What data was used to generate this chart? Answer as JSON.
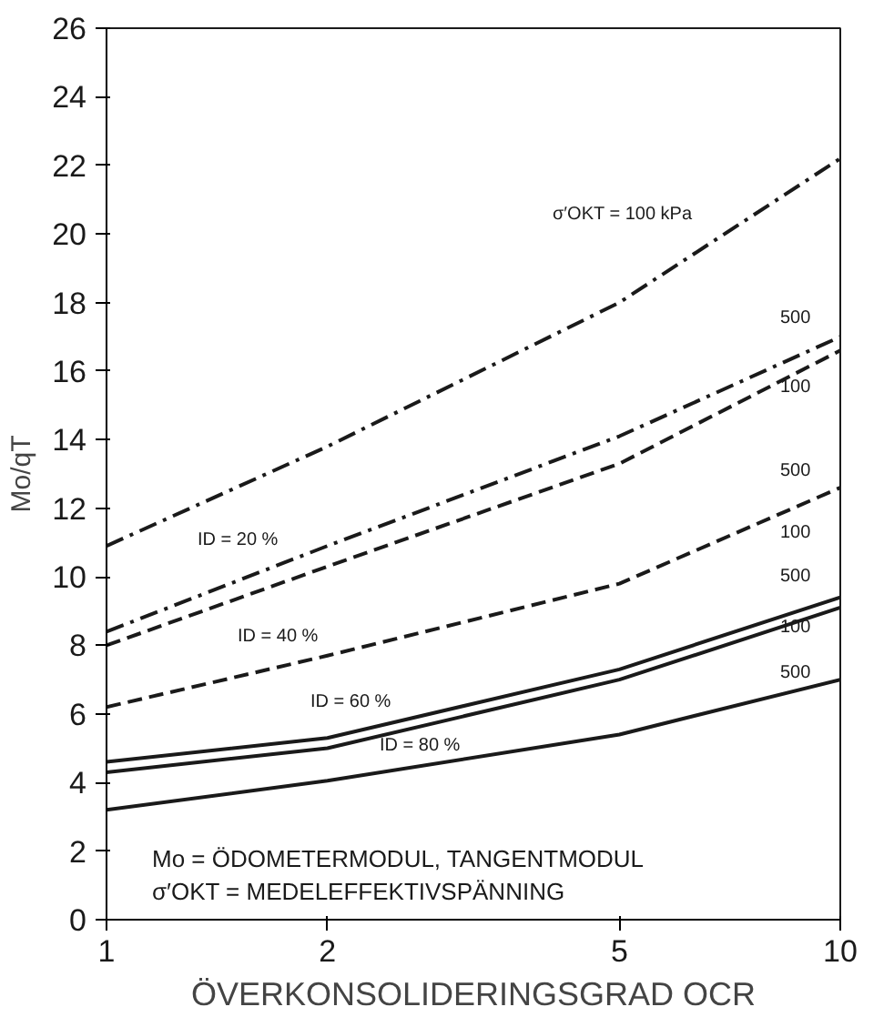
{
  "chart_data": {
    "type": "line",
    "xlabel": "ÖVERKONSOLIDERINGSGRAD OCR",
    "ylabel": "Mo/qT",
    "x": [
      1,
      2,
      5,
      10
    ],
    "log": "x",
    "xlim": [
      1,
      10
    ],
    "xticks": [
      1,
      2,
      5,
      10
    ],
    "ylim": [
      0,
      26
    ],
    "yticks": [
      0,
      2,
      4,
      6,
      8,
      10,
      12,
      14,
      16,
      18,
      20,
      22,
      24,
      26
    ],
    "grid": false,
    "marker": "none",
    "series": [
      {
        "color": "#1a1a1a",
        "line_style": "dashdot",
        "values": [
          10.9,
          13.8,
          18.0,
          22.2
        ]
      },
      {
        "color": "#1a1a1a",
        "line_style": "dashdot",
        "values": [
          8.4,
          10.9,
          14.1,
          17.0
        ]
      },
      {
        "color": "#1a1a1a",
        "line_style": "dashed",
        "values": [
          8.0,
          10.3,
          13.3,
          16.6
        ]
      },
      {
        "color": "#1a1a1a",
        "line_style": "dashed",
        "values": [
          6.2,
          7.7,
          9.8,
          12.6
        ]
      },
      {
        "color": "#1a1a1a",
        "line_style": "solid",
        "values": [
          4.6,
          5.3,
          7.3,
          9.4
        ]
      },
      {
        "color": "#1a1a1a",
        "line_style": "solid",
        "values": [
          4.3,
          5.0,
          7.0,
          9.1
        ]
      },
      {
        "color": "#1a1a1a",
        "line_style": "solid",
        "values": [
          3.2,
          4.05,
          5.4,
          7.0
        ]
      }
    ],
    "annotations": [
      "σ′OKT = 100 kPa",
      "500",
      "100",
      "500",
      "100",
      "500",
      "100",
      "500",
      "ID = 20 %",
      "ID = 40 %",
      "ID = 60 %",
      "ID = 80 %",
      "Mo = ÖDOMETERMODUL, TANGENTMODUL",
      "σ′OKT = MEDELEFFEKTIVSPÄNNING"
    ]
  }
}
